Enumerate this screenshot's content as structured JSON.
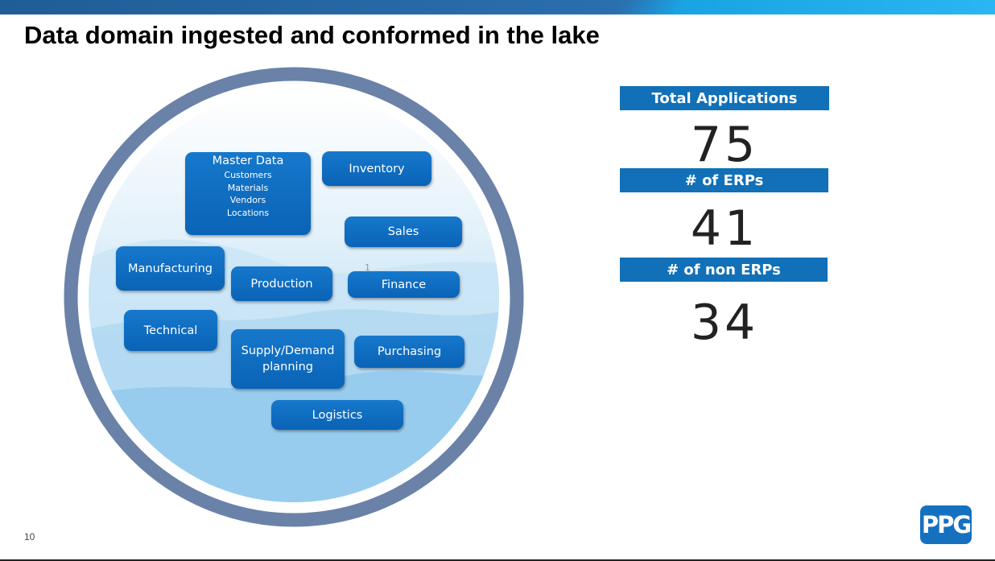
{
  "slide": {
    "title": "Data domain ingested and conformed in the lake",
    "page_number": "10",
    "logo_text": "PPG"
  },
  "lake": {
    "faint_mark": "1",
    "master_data": {
      "title": "Master Data",
      "items": [
        "Customers",
        "Materials",
        "Vendors",
        "Locations"
      ]
    },
    "domains": {
      "inventory": "Inventory",
      "sales": "Sales",
      "manufacturing": "Manufacturing",
      "production": "Production",
      "finance": "Finance",
      "technical": "Technical",
      "supply_demand": "Supply/Demand planning",
      "purchasing": "Purchasing",
      "logistics": "Logistics"
    }
  },
  "stats": {
    "total_applications": {
      "label": "Total Applications",
      "value": "75"
    },
    "erps": {
      "label": "# of ERPs",
      "value": "41"
    },
    "non_erps": {
      "label": "# of non ERPs",
      "value": "34"
    }
  },
  "colors": {
    "box_blue": "#0a63b6",
    "ring": "#6a82a8",
    "stat_label_bg": "#1170b7",
    "logo_bg": "#1570c0"
  }
}
